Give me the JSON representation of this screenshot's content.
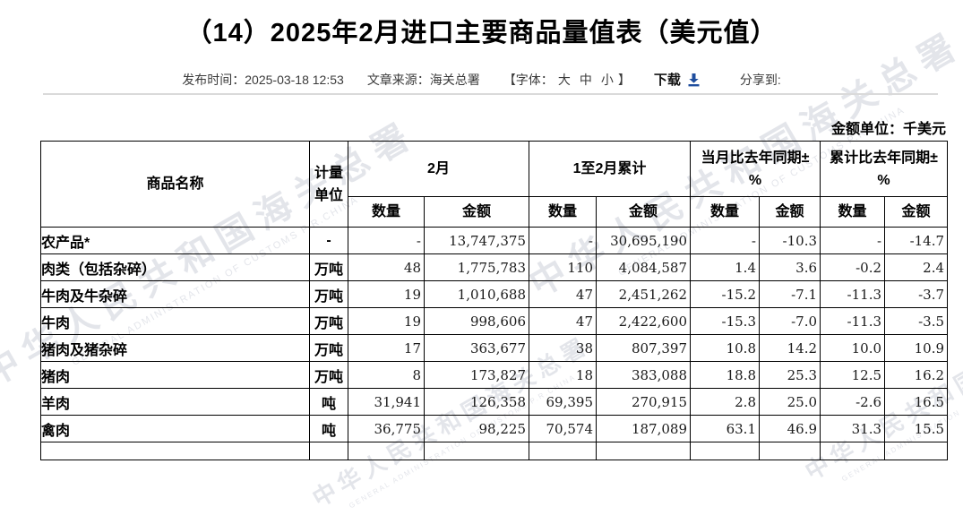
{
  "page": {
    "title": "（14）2025年2月进口主要商品量值表（美元值）"
  },
  "meta": {
    "publish": "发布时间：2025-03-18 12:53",
    "source": "文章来源：海关总署",
    "font_prefix": "【字体：",
    "font_large": "大",
    "font_medium": "中",
    "font_small": "小",
    "font_suffix": "】",
    "download": "下载",
    "download_icon": "download-arrow-icon",
    "share": "分享到:"
  },
  "watermark": {
    "cn": "中华人民共和国海关总署",
    "en": "GENERAL ADMINISTRATION OF CUSTOMS P.R.CHINA"
  },
  "table": {
    "unit_note": "金额单位：千美元",
    "headers": {
      "commodity": "商品名称",
      "unit": "计量单位",
      "feb": "2月",
      "cum": "1至2月累计",
      "mom_line1": "当月比去年同期±",
      "yoy_line1": "累计比去年同期±",
      "pct": "%",
      "qty": "数量",
      "amt": "金额"
    },
    "rows": [
      {
        "name": "农产品*",
        "indent": 0,
        "unit": "-",
        "feb_qty": "-",
        "feb_amt": "13,747,375",
        "cum_qty": "-",
        "cum_amt": "30,695,190",
        "mom_qty": "-",
        "mom_amt": "-10.3",
        "yoy_qty": "-",
        "yoy_amt": "-14.7"
      },
      {
        "name": "肉类（包括杂碎）",
        "indent": 1,
        "unit": "万吨",
        "feb_qty": "48",
        "feb_amt": "1,775,783",
        "cum_qty": "110",
        "cum_amt": "4,084,587",
        "mom_qty": "1.4",
        "mom_amt": "3.6",
        "yoy_qty": "-0.2",
        "yoy_amt": "2.4"
      },
      {
        "name": "牛肉及牛杂碎",
        "indent": 2,
        "unit": "万吨",
        "feb_qty": "19",
        "feb_amt": "1,010,688",
        "cum_qty": "47",
        "cum_amt": "2,451,262",
        "mom_qty": "-15.2",
        "mom_amt": "-7.1",
        "yoy_qty": "-11.3",
        "yoy_amt": "-3.7"
      },
      {
        "name": "牛肉",
        "indent": 3,
        "unit": "万吨",
        "feb_qty": "19",
        "feb_amt": "998,606",
        "cum_qty": "47",
        "cum_amt": "2,422,600",
        "mom_qty": "-15.3",
        "mom_amt": "-7.0",
        "yoy_qty": "-11.3",
        "yoy_amt": "-3.5"
      },
      {
        "name": "猪肉及猪杂碎",
        "indent": 2,
        "unit": "万吨",
        "feb_qty": "17",
        "feb_amt": "363,677",
        "cum_qty": "38",
        "cum_amt": "807,397",
        "mom_qty": "10.8",
        "mom_amt": "14.2",
        "yoy_qty": "10.0",
        "yoy_amt": "10.9"
      },
      {
        "name": "猪肉",
        "indent": 3,
        "unit": "万吨",
        "feb_qty": "8",
        "feb_amt": "173,827",
        "cum_qty": "18",
        "cum_amt": "383,088",
        "mom_qty": "18.8",
        "mom_amt": "25.3",
        "yoy_qty": "12.5",
        "yoy_amt": "16.2"
      },
      {
        "name": "羊肉",
        "indent": 1,
        "unit": "吨",
        "feb_qty": "31,941",
        "feb_amt": "126,358",
        "cum_qty": "69,395",
        "cum_amt": "270,915",
        "mom_qty": "2.8",
        "mom_amt": "25.0",
        "yoy_qty": "-2.6",
        "yoy_amt": "16.5"
      },
      {
        "name": "禽肉",
        "indent": 1,
        "unit": "吨",
        "feb_qty": "36,775",
        "feb_amt": "98,225",
        "cum_qty": "70,574",
        "cum_amt": "187,089",
        "mom_qty": "63.1",
        "mom_amt": "46.9",
        "yoy_qty": "31.3",
        "yoy_amt": "15.5"
      }
    ]
  }
}
